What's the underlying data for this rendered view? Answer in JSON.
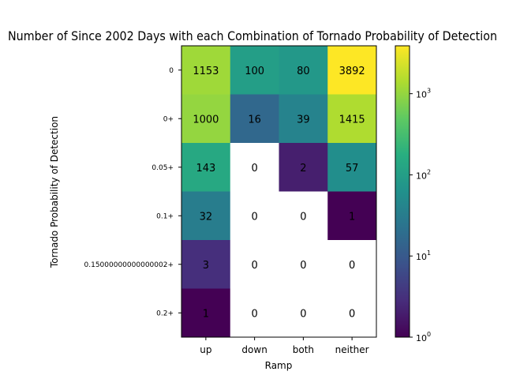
{
  "chart_data": {
    "type": "heatmap",
    "title": "Number of Since 2002 Days with each Combination of Tornado Probability of Detection",
    "xlabel": "Ramp",
    "ylabel": "Tornado Probability of Detection",
    "x_categories": [
      "up",
      "down",
      "both",
      "neither"
    ],
    "y_categories": [
      "0",
      "0+",
      "0.05+",
      "0.1+",
      "0.15000000000000002+",
      "0.2+"
    ],
    "values": [
      [
        1153,
        100,
        80,
        3892
      ],
      [
        1000,
        16,
        39,
        1415
      ],
      [
        143,
        0,
        2,
        57
      ],
      [
        32,
        0,
        0,
        1
      ],
      [
        3,
        0,
        0,
        0
      ],
      [
        1,
        0,
        0,
        0
      ]
    ],
    "colorscale": "viridis",
    "color_scale_type": "log",
    "zero_cell_color": "#ffffff",
    "colorbar": {
      "range": [
        1,
        3892
      ],
      "ticks": [
        {
          "value": 1,
          "base": "10",
          "exp": "0"
        },
        {
          "value": 10,
          "base": "10",
          "exp": "1"
        },
        {
          "value": 100,
          "base": "10",
          "exp": "2"
        },
        {
          "value": 1000,
          "base": "10",
          "exp": "3"
        }
      ]
    }
  }
}
